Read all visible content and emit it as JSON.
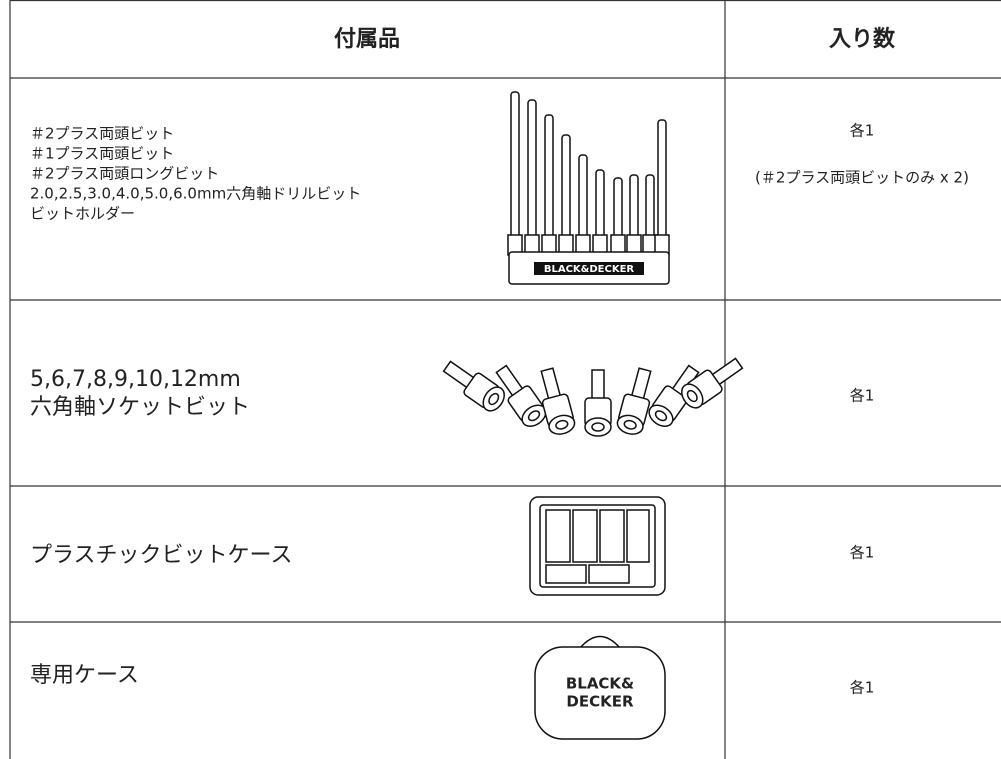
{
  "table": {
    "header": [
      "付属品",
      "入り数"
    ],
    "rows": [
      {
        "item": [
          "＃2プラス両頭ビット",
          "＃1プラス両頭ビット",
          "＃2プラス両頭ロングビット",
          "2.0,2.5,3.0,4.0,5.0,6.0mm六角軸ドリルビット",
          "ビットホルダー"
        ],
        "logo": [
          "BLACK&DECKER"
        ],
        "qty": [
          "各1",
          "(＃2プラス両頭ビットのみ x 2)"
        ]
      },
      {
        "item": [
          "5,6,7,8,9,10,12mm",
          "六角軸ソケットビット"
        ],
        "qty": [
          "各1"
        ]
      },
      {
        "item": [
          "プラスチックビットケース"
        ],
        "qty": [
          "各1"
        ]
      },
      {
        "item": [
          "専用ケース"
        ],
        "logo": [
          "BLACK&",
          "DECKER"
        ],
        "qty": [
          "各1"
        ]
      }
    ]
  }
}
